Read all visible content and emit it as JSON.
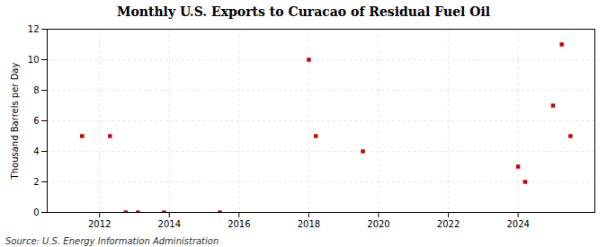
{
  "chart_data": {
    "type": "scatter",
    "title": "Monthly U.S. Exports to Curacao of Residual Fuel Oil",
    "ylabel": "Thousand Barrels per Day",
    "source": "Source: U.S. Energy Information Administration",
    "x": [
      2011.5,
      2012.3,
      2012.75,
      2013.1,
      2013.85,
      2015.45,
      2018.0,
      2018.2,
      2019.55,
      2024.0,
      2024.2,
      2025.0,
      2025.25,
      2025.5
    ],
    "values": [
      5,
      5,
      0,
      0,
      0,
      0,
      10,
      5,
      4,
      3,
      2,
      7,
      11,
      5
    ],
    "color": "#cc0000",
    "marker": "square",
    "xlim": [
      2010.5,
      2026.2
    ],
    "ylim": [
      0,
      12
    ],
    "xticks": [
      2012,
      2014,
      2016,
      2018,
      2020,
      2022,
      2024
    ],
    "yticks": [
      0,
      2,
      4,
      6,
      8,
      10,
      12
    ],
    "grid": true
  }
}
